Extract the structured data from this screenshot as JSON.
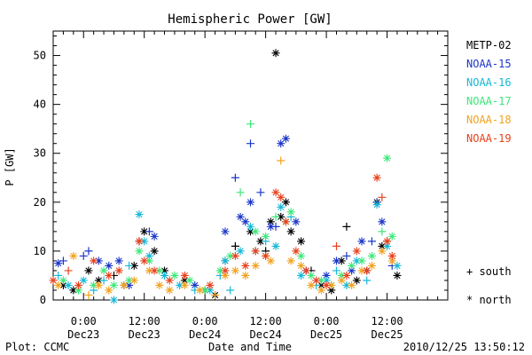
{
  "chart_data": {
    "type": "scatter",
    "title": "Hemispheric Power [GW]",
    "xlabel": "Date and Time",
    "ylabel": "P [GW]",
    "ylim": [
      0,
      55
    ],
    "yticks": [
      0,
      10,
      20,
      30,
      40,
      50
    ],
    "xlim_hours": [
      -6,
      72
    ],
    "xticks": [
      {
        "hour": 0,
        "line1": "0:00",
        "line2": "Dec23"
      },
      {
        "hour": 12,
        "line1": "12:00",
        "line2": "Dec23"
      },
      {
        "hour": 24,
        "line1": "0:00",
        "line2": "Dec24"
      },
      {
        "hour": 36,
        "line1": "12:00",
        "line2": "Dec24"
      },
      {
        "hour": 48,
        "line1": "0:00",
        "line2": "Dec25"
      },
      {
        "hour": 60,
        "line1": "12:00",
        "line2": "Dec25"
      }
    ],
    "x_axis_reference": "hours since 2010-12-23 00:00 UT",
    "grid": false,
    "legend_placement": "right",
    "markers": {
      "south_symbol": "+",
      "south_label": "south",
      "north_symbol": "*",
      "north_label": "north"
    },
    "series": [
      {
        "name": "METP-02",
        "color": "#000000",
        "points": [
          [
            -4,
            3,
            "*"
          ],
          [
            -2,
            2,
            "*"
          ],
          [
            1,
            6,
            "*"
          ],
          [
            3,
            4,
            "*"
          ],
          [
            6,
            5,
            "+"
          ],
          [
            8,
            3,
            "*"
          ],
          [
            10,
            7,
            "*"
          ],
          [
            11,
            12,
            "+"
          ],
          [
            12,
            14,
            "*"
          ],
          [
            14,
            10,
            "*"
          ],
          [
            16,
            6,
            "*"
          ],
          [
            20,
            4,
            "*"
          ],
          [
            24,
            2,
            "*"
          ],
          [
            26,
            1,
            "*"
          ],
          [
            28,
            8,
            "*"
          ],
          [
            30,
            11,
            "+"
          ],
          [
            33,
            14,
            "*"
          ],
          [
            35,
            12,
            "*"
          ],
          [
            36,
            10,
            "+"
          ],
          [
            37,
            16,
            "*"
          ],
          [
            38,
            50.5,
            "*"
          ],
          [
            39,
            17,
            "*"
          ],
          [
            40,
            20,
            "*"
          ],
          [
            41,
            14,
            "*"
          ],
          [
            43,
            12,
            "*"
          ],
          [
            45,
            6,
            "+"
          ],
          [
            47,
            3,
            "*"
          ],
          [
            49,
            2,
            "*"
          ],
          [
            51,
            8,
            "*"
          ],
          [
            52,
            15,
            "+"
          ],
          [
            54,
            4,
            "*"
          ],
          [
            56,
            6,
            "*"
          ],
          [
            58,
            20,
            "*"
          ],
          [
            59,
            11,
            "*"
          ],
          [
            60,
            12,
            "+"
          ],
          [
            62,
            5,
            "*"
          ]
        ]
      },
      {
        "name": "NOAA-15",
        "color": "#1b35c8",
        "points": [
          [
            -5,
            7.5,
            "*"
          ],
          [
            -4,
            8,
            "+"
          ],
          [
            0,
            9,
            "+"
          ],
          [
            1,
            10,
            "+"
          ],
          [
            3,
            8,
            "*"
          ],
          [
            5,
            7,
            "*"
          ],
          [
            7,
            8,
            "*"
          ],
          [
            9,
            3,
            "*"
          ],
          [
            13,
            14,
            "+"
          ],
          [
            14,
            13,
            "*"
          ],
          [
            22,
            3,
            "*"
          ],
          [
            28,
            14,
            "*"
          ],
          [
            30,
            25,
            "+"
          ],
          [
            31,
            17,
            "*"
          ],
          [
            32,
            16,
            "*"
          ],
          [
            33,
            32,
            "+"
          ],
          [
            33,
            20,
            "*"
          ],
          [
            35,
            22,
            "+"
          ],
          [
            37,
            15,
            "*"
          ],
          [
            38,
            15,
            "+"
          ],
          [
            39,
            32,
            "*"
          ],
          [
            40,
            33,
            "*"
          ],
          [
            42,
            16,
            "*"
          ],
          [
            44,
            6,
            "*"
          ],
          [
            48,
            5,
            "*"
          ],
          [
            50,
            8,
            "*"
          ],
          [
            52,
            9,
            "+"
          ],
          [
            53,
            6,
            "*"
          ],
          [
            55,
            12,
            "*"
          ],
          [
            57,
            12,
            "+"
          ],
          [
            58,
            20,
            "+"
          ],
          [
            59,
            16,
            "*"
          ],
          [
            61,
            7,
            "+"
          ]
        ]
      },
      {
        "name": "NOAA-16",
        "color": "#16b8d8",
        "points": [
          [
            -5,
            5,
            "+"
          ],
          [
            -3,
            3,
            "*"
          ],
          [
            0,
            4,
            "*"
          ],
          [
            2,
            2,
            "+"
          ],
          [
            4,
            4,
            "+"
          ],
          [
            6,
            0,
            "*"
          ],
          [
            9,
            7,
            "+"
          ],
          [
            11,
            17.5,
            "*"
          ],
          [
            12,
            12,
            "*"
          ],
          [
            13,
            9,
            "*"
          ],
          [
            16,
            5,
            "*"
          ],
          [
            19,
            3,
            "*"
          ],
          [
            22,
            2,
            "+"
          ],
          [
            25,
            2,
            "*"
          ],
          [
            27,
            5,
            "+"
          ],
          [
            28,
            8,
            "*"
          ],
          [
            29,
            2,
            "+"
          ],
          [
            31,
            10,
            "*"
          ],
          [
            33,
            15,
            "*"
          ],
          [
            34,
            10,
            "*"
          ],
          [
            36,
            12,
            "+"
          ],
          [
            38,
            11,
            "*"
          ],
          [
            39,
            19,
            "*"
          ],
          [
            41,
            17,
            "+"
          ],
          [
            43,
            5,
            "*"
          ],
          [
            46,
            3,
            "+"
          ],
          [
            48,
            4,
            "*"
          ],
          [
            50,
            6,
            "+"
          ],
          [
            52,
            3,
            "*"
          ],
          [
            54,
            8,
            "*"
          ],
          [
            56,
            4,
            "+"
          ],
          [
            58,
            19.5,
            "*"
          ],
          [
            60,
            11,
            "*"
          ],
          [
            62,
            7,
            "*"
          ]
        ]
      },
      {
        "name": "NOAA-17",
        "color": "#3ce87a",
        "points": [
          [
            -4,
            4,
            "*"
          ],
          [
            -1,
            2,
            "*"
          ],
          [
            2,
            3,
            "*"
          ],
          [
            4,
            6,
            "*"
          ],
          [
            6,
            3,
            "*"
          ],
          [
            9,
            4,
            "*"
          ],
          [
            11,
            10,
            "*"
          ],
          [
            13,
            8,
            "*"
          ],
          [
            15,
            6,
            "*"
          ],
          [
            18,
            5,
            "*"
          ],
          [
            21,
            4,
            "*"
          ],
          [
            24,
            2,
            "*"
          ],
          [
            27,
            6,
            "*"
          ],
          [
            29,
            9,
            "*"
          ],
          [
            31,
            22,
            "+"
          ],
          [
            33,
            36,
            "+"
          ],
          [
            34,
            14,
            "*"
          ],
          [
            36,
            13,
            "*"
          ],
          [
            38,
            17,
            "+"
          ],
          [
            40,
            16,
            "*"
          ],
          [
            41,
            18,
            "*"
          ],
          [
            43,
            9,
            "*"
          ],
          [
            45,
            5,
            "*"
          ],
          [
            47,
            4,
            "*"
          ],
          [
            49,
            3,
            "*"
          ],
          [
            51,
            5,
            "*"
          ],
          [
            53,
            7,
            "*"
          ],
          [
            55,
            8,
            "*"
          ],
          [
            57,
            9,
            "*"
          ],
          [
            59,
            14,
            "+"
          ],
          [
            60,
            29,
            "*"
          ],
          [
            61,
            13,
            "*"
          ]
        ]
      },
      {
        "name": "NOAA-18",
        "color": "#f2a21e",
        "points": [
          [
            -5,
            3,
            "*"
          ],
          [
            -2,
            9,
            "*"
          ],
          [
            1,
            1,
            "+"
          ],
          [
            3,
            3,
            "*"
          ],
          [
            5,
            2,
            "*"
          ],
          [
            8,
            3,
            "*"
          ],
          [
            10,
            4,
            "*"
          ],
          [
            13,
            6,
            "*"
          ],
          [
            15,
            3,
            "*"
          ],
          [
            17,
            2,
            "*"
          ],
          [
            20,
            3,
            "*"
          ],
          [
            23,
            2,
            "*"
          ],
          [
            26,
            1,
            "+"
          ],
          [
            28,
            5,
            "*"
          ],
          [
            30,
            6,
            "*"
          ],
          [
            32,
            5,
            "*"
          ],
          [
            34,
            7,
            "*"
          ],
          [
            36,
            9,
            "*"
          ],
          [
            37,
            8,
            "*"
          ],
          [
            39,
            28.5,
            "+"
          ],
          [
            41,
            8,
            "*"
          ],
          [
            43,
            7,
            "*"
          ],
          [
            45,
            3,
            "*"
          ],
          [
            47,
            2,
            "*"
          ],
          [
            49,
            3,
            "*"
          ],
          [
            51,
            4,
            "*"
          ],
          [
            53,
            3,
            "*"
          ],
          [
            55,
            6,
            "*"
          ],
          [
            57,
            7,
            "*"
          ],
          [
            59,
            10,
            "*"
          ],
          [
            61,
            8,
            "*"
          ]
        ]
      },
      {
        "name": "NOAA-19",
        "color": "#e8401c",
        "points": [
          [
            -6,
            4,
            "*"
          ],
          [
            -3,
            6,
            "+"
          ],
          [
            -1,
            3,
            "*"
          ],
          [
            2,
            8,
            "*"
          ],
          [
            5,
            5,
            "*"
          ],
          [
            7,
            6,
            "*"
          ],
          [
            11,
            12,
            "*"
          ],
          [
            12,
            8,
            "*"
          ],
          [
            14,
            6,
            "*"
          ],
          [
            17,
            4,
            "*"
          ],
          [
            20,
            5,
            "*"
          ],
          [
            25,
            3,
            "*"
          ],
          [
            28,
            6,
            "*"
          ],
          [
            30,
            9,
            "*"
          ],
          [
            32,
            7,
            "*"
          ],
          [
            34,
            10,
            "*"
          ],
          [
            36,
            9,
            "*"
          ],
          [
            38,
            22,
            "*"
          ],
          [
            39,
            21,
            "*"
          ],
          [
            40,
            16,
            "*"
          ],
          [
            42,
            10,
            "*"
          ],
          [
            44,
            6,
            "*"
          ],
          [
            46,
            4,
            "*"
          ],
          [
            48,
            3,
            "*"
          ],
          [
            50,
            11,
            "+"
          ],
          [
            52,
            5,
            "*"
          ],
          [
            54,
            10,
            "*"
          ],
          [
            56,
            6,
            "*"
          ],
          [
            58,
            25,
            "*"
          ],
          [
            59,
            21,
            "+"
          ],
          [
            60,
            12,
            "*"
          ],
          [
            61,
            9,
            "*"
          ]
        ]
      }
    ]
  },
  "footer": {
    "left": "Plot: CCMC",
    "right": "2010/12/25 13:50:12"
  }
}
